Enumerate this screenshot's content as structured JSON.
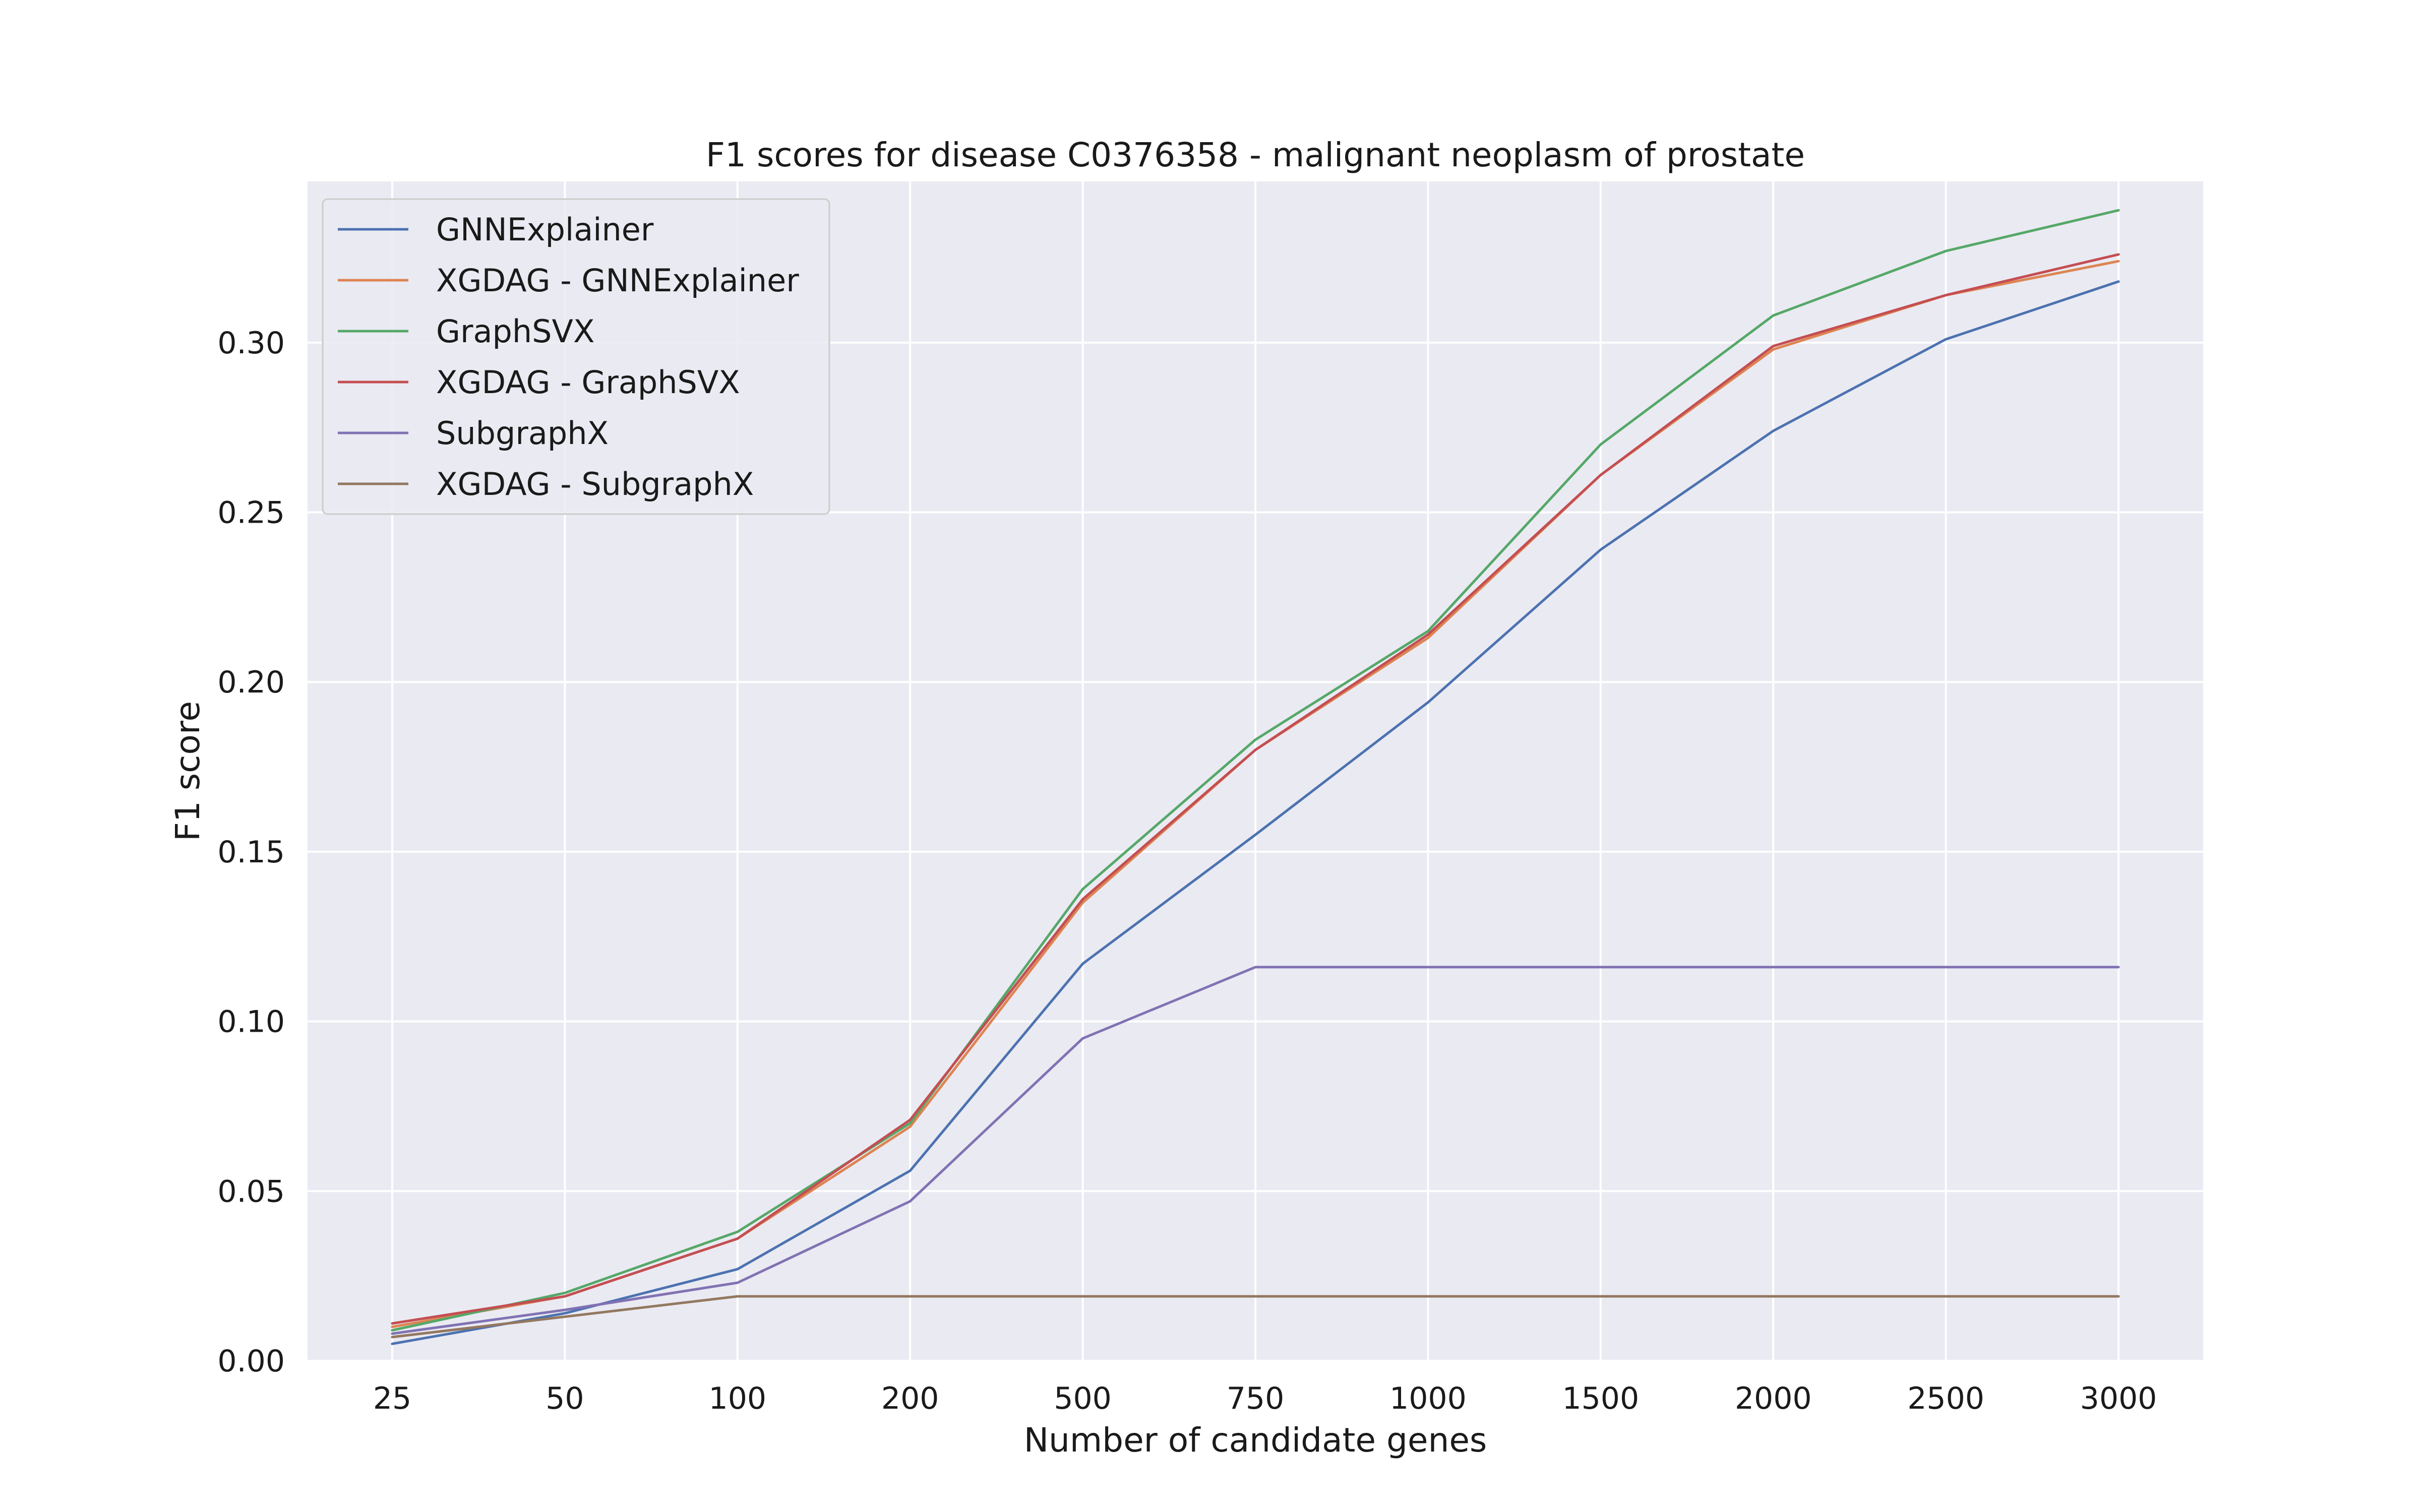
{
  "chart_data": {
    "type": "line",
    "title": "F1 scores for disease C0376358 - malignant neoplasm of prostate",
    "xlabel": "Number of candidate genes",
    "ylabel": "F1 score",
    "categories": [
      "25",
      "50",
      "100",
      "200",
      "500",
      "750",
      "1000",
      "1500",
      "2000",
      "2500",
      "3000"
    ],
    "yticks": [
      "0.00",
      "0.05",
      "0.10",
      "0.15",
      "0.20",
      "0.25",
      "0.30"
    ],
    "ylim": [
      0,
      0.3475
    ],
    "grid": true,
    "legend_position": "top-left",
    "background_color": "#eaeaf2",
    "series": [
      {
        "name": "GNNExplainer",
        "color": "#4c72b0",
        "values": [
          0.005,
          0.014,
          0.027,
          0.056,
          0.117,
          0.155,
          0.194,
          0.239,
          0.274,
          0.301,
          0.318
        ]
      },
      {
        "name": "XGDAG - GNNExplainer",
        "color": "#dd8452",
        "values": [
          0.01,
          0.019,
          0.036,
          0.069,
          0.135,
          0.18,
          0.213,
          0.261,
          0.298,
          0.314,
          0.324
        ]
      },
      {
        "name": "GraphSVX",
        "color": "#55a868",
        "values": [
          0.009,
          0.02,
          0.038,
          0.07,
          0.139,
          0.183,
          0.215,
          0.27,
          0.308,
          0.327,
          0.339
        ]
      },
      {
        "name": "XGDAG - GraphSVX",
        "color": "#c44e52",
        "values": [
          0.011,
          0.019,
          0.036,
          0.071,
          0.136,
          0.18,
          0.214,
          0.261,
          0.299,
          0.314,
          0.326
        ]
      },
      {
        "name": "SubgraphX",
        "color": "#8172b3",
        "values": [
          0.008,
          0.015,
          0.023,
          0.047,
          0.095,
          0.116,
          0.116,
          0.116,
          0.116,
          0.116,
          0.116
        ]
      },
      {
        "name": "XGDAG - SubgraphX",
        "color": "#937860",
        "values": [
          0.007,
          0.013,
          0.019,
          0.019,
          0.019,
          0.019,
          0.019,
          0.019,
          0.019,
          0.019,
          0.019
        ]
      }
    ]
  }
}
